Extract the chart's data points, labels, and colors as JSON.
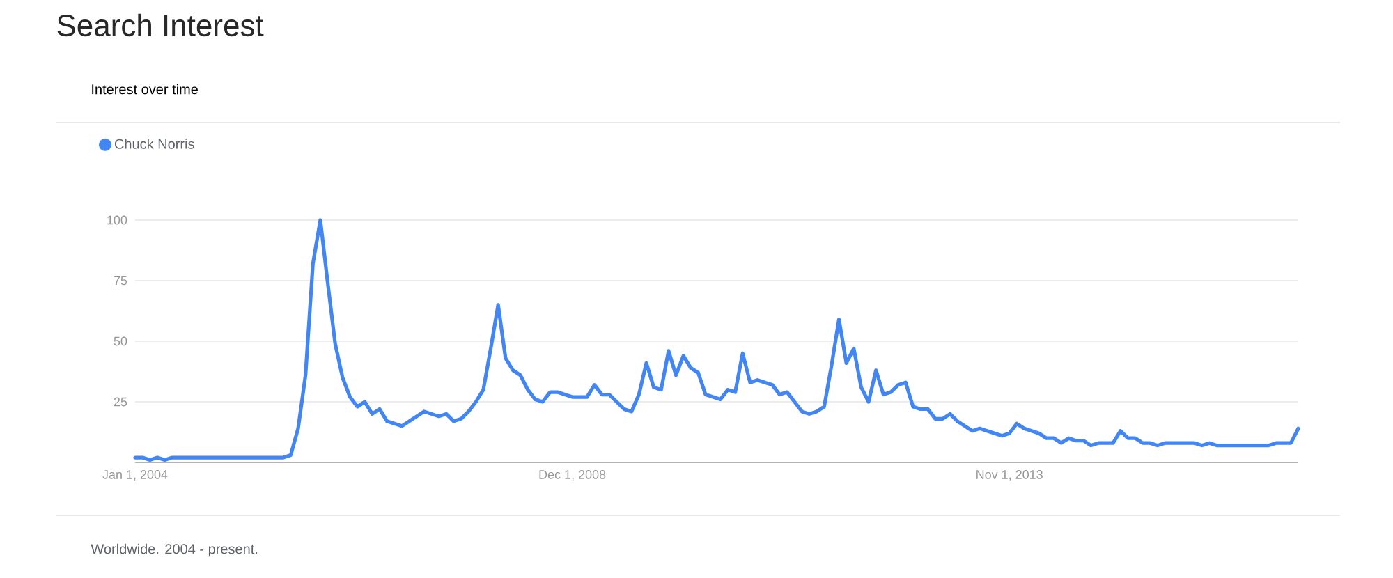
{
  "chart_data": {
    "type": "line",
    "title": "Search Interest",
    "subtitle": "Interest over time",
    "x": [
      "2004-01",
      "2004-02",
      "2004-03",
      "2004-04",
      "2004-05",
      "2004-06",
      "2004-07",
      "2004-08",
      "2004-09",
      "2004-10",
      "2004-11",
      "2004-12",
      "2005-01",
      "2005-02",
      "2005-03",
      "2005-04",
      "2005-05",
      "2005-06",
      "2005-07",
      "2005-08",
      "2005-09",
      "2005-10",
      "2005-11",
      "2005-12",
      "2006-01",
      "2006-02",
      "2006-03",
      "2006-04",
      "2006-05",
      "2006-06",
      "2006-07",
      "2006-08",
      "2006-09",
      "2006-10",
      "2006-11",
      "2006-12",
      "2007-01",
      "2007-02",
      "2007-03",
      "2007-04",
      "2007-05",
      "2007-06",
      "2007-07",
      "2007-08",
      "2007-09",
      "2007-10",
      "2007-11",
      "2007-12",
      "2008-01",
      "2008-02",
      "2008-03",
      "2008-04",
      "2008-05",
      "2008-06",
      "2008-07",
      "2008-08",
      "2008-09",
      "2008-10",
      "2008-11",
      "2008-12",
      "2009-01",
      "2009-02",
      "2009-03",
      "2009-04",
      "2009-05",
      "2009-06",
      "2009-07",
      "2009-08",
      "2009-09",
      "2009-10",
      "2009-11",
      "2009-12",
      "2010-01",
      "2010-02",
      "2010-03",
      "2010-04",
      "2010-05",
      "2010-06",
      "2010-07",
      "2010-08",
      "2010-09",
      "2010-10",
      "2010-11",
      "2010-12",
      "2011-01",
      "2011-02",
      "2011-03",
      "2011-04",
      "2011-05",
      "2011-06",
      "2011-07",
      "2011-08",
      "2011-09",
      "2011-10",
      "2011-11",
      "2011-12",
      "2012-01",
      "2012-02",
      "2012-03",
      "2012-04",
      "2012-05",
      "2012-06",
      "2012-07",
      "2012-08",
      "2012-09",
      "2012-10",
      "2012-11",
      "2012-12",
      "2013-01",
      "2013-02",
      "2013-03",
      "2013-04",
      "2013-05",
      "2013-06",
      "2013-07",
      "2013-08",
      "2013-09",
      "2013-10",
      "2013-11",
      "2013-12",
      "2014-01",
      "2014-02",
      "2014-03",
      "2014-04",
      "2014-05",
      "2014-06",
      "2014-07",
      "2014-08",
      "2014-09",
      "2014-10",
      "2014-11",
      "2014-12",
      "2015-01",
      "2015-02",
      "2015-03",
      "2015-04",
      "2015-05",
      "2015-06",
      "2015-07",
      "2015-08",
      "2015-09",
      "2015-10",
      "2015-11",
      "2015-12",
      "2016-01",
      "2016-02",
      "2016-03",
      "2016-04",
      "2016-05",
      "2016-06",
      "2016-07",
      "2016-08",
      "2016-09",
      "2016-10",
      "2016-11",
      "2016-12",
      "2017-01",
      "2017-02"
    ],
    "series": [
      {
        "name": "Chuck Norris",
        "color": "#4285f4",
        "values": [
          2,
          2,
          1,
          2,
          1,
          2,
          2,
          2,
          2,
          2,
          2,
          2,
          2,
          2,
          2,
          2,
          2,
          2,
          2,
          2,
          2,
          3,
          14,
          36,
          82,
          100,
          74,
          49,
          35,
          27,
          23,
          25,
          20,
          22,
          17,
          16,
          15,
          17,
          19,
          21,
          20,
          19,
          20,
          17,
          18,
          21,
          25,
          30,
          47,
          65,
          43,
          38,
          36,
          30,
          26,
          25,
          29,
          29,
          28,
          27,
          27,
          27,
          32,
          28,
          28,
          25,
          22,
          21,
          28,
          41,
          31,
          30,
          46,
          36,
          44,
          39,
          37,
          28,
          27,
          26,
          30,
          29,
          45,
          33,
          34,
          33,
          32,
          28,
          29,
          25,
          21,
          20,
          21,
          23,
          40,
          59,
          41,
          47,
          31,
          25,
          38,
          28,
          29,
          32,
          33,
          23,
          22,
          22,
          18,
          18,
          20,
          17,
          15,
          13,
          14,
          13,
          12,
          11,
          12,
          16,
          14,
          13,
          12,
          10,
          10,
          8,
          10,
          9,
          9,
          7,
          8,
          8,
          8,
          13,
          10,
          10,
          8,
          8,
          7,
          8,
          8,
          8,
          8,
          8,
          7,
          8,
          7,
          7,
          7,
          7,
          7,
          7,
          7,
          7,
          8,
          8,
          8,
          14
        ]
      }
    ],
    "xlim": [
      "2004-01",
      "2017-02"
    ],
    "xticks": [
      {
        "value": "2004-01",
        "label": "Jan 1, 2004"
      },
      {
        "value": "2008-12",
        "label": "Dec 1, 2008"
      },
      {
        "value": "2013-11",
        "label": "Nov 1, 2013"
      }
    ],
    "ylim": [
      0,
      100
    ],
    "yticks": [
      25,
      50,
      75,
      100
    ],
    "grid": "y",
    "legend": "top left",
    "marker": "none",
    "line_style": "solid",
    "annotations": [
      "Worldwide. 2004 - present."
    ]
  }
}
